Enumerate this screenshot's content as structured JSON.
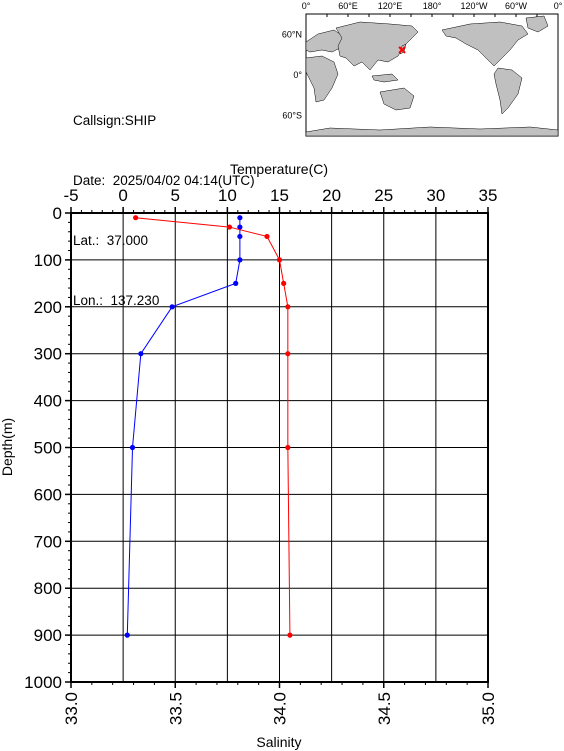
{
  "station": {
    "callsign_label": "Callsign:SHIP",
    "date_label": "Date:  2025/04/02 04:14(UTC)",
    "lat_label": "Lat.:  37.000",
    "lon_label": "Lon.:  137.230"
  },
  "map": {
    "lon_ticks": [
      "0°",
      "60°E",
      "120°E",
      "180°",
      "120°W",
      "60°W",
      "0°"
    ],
    "lat_ticks": [
      "60°N",
      "0°",
      "60°S"
    ],
    "land_color": "#c0c0c0",
    "ocean_color": "#ffffff",
    "marker_color": "#ff0000",
    "marker": {
      "lon": 137.23,
      "lat": 37.0
    }
  },
  "chart_data": {
    "type": "line",
    "temperature_axis": {
      "label": "Temperature(C)",
      "range": [
        -5,
        35
      ],
      "ticks": [
        "-5",
        "0",
        "5",
        "10",
        "15",
        "20",
        "25",
        "30",
        "35"
      ]
    },
    "salinity_axis": {
      "label": "Salinity",
      "range": [
        33.0,
        35.0
      ],
      "ticks": [
        "33.0",
        "33.5",
        "34.0",
        "34.5",
        "35.0"
      ]
    },
    "depth_axis": {
      "label": "Depth(m)",
      "range": [
        0,
        1000
      ],
      "ticks": [
        "0",
        "100",
        "200",
        "300",
        "400",
        "500",
        "600",
        "700",
        "800",
        "900",
        "1000"
      ]
    },
    "grid": true,
    "series": [
      {
        "quantity": "temperature",
        "color": "#0000ff",
        "depth": [
          10,
          30,
          50,
          100,
          150,
          200,
          300,
          500,
          900
        ],
        "values": [
          11.2,
          11.2,
          11.2,
          11.2,
          10.8,
          4.7,
          1.7,
          0.9,
          0.4
        ]
      },
      {
        "quantity": "salinity",
        "color": "#ff0000",
        "depth": [
          10,
          30,
          50,
          100,
          150,
          200,
          300,
          500,
          900
        ],
        "values": [
          33.31,
          33.76,
          33.94,
          34.0,
          34.02,
          34.04,
          34.04,
          34.04,
          34.05
        ]
      }
    ]
  }
}
